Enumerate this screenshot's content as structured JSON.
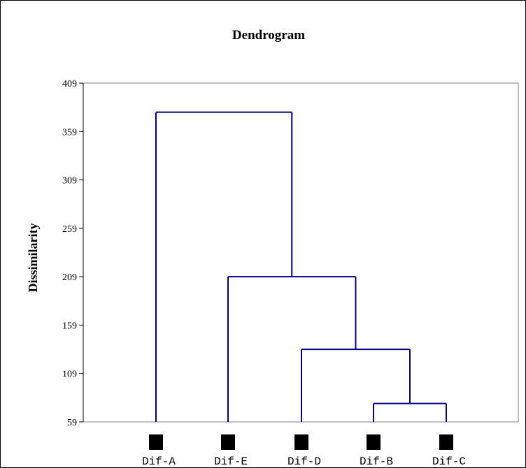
{
  "chart_data": {
    "type": "dendrogram",
    "title": "Dendrogram",
    "ylabel": "Dissimilarity",
    "xlabel": "",
    "ylim": [
      59,
      409
    ],
    "yticks": [
      59,
      109,
      159,
      209,
      259,
      309,
      359,
      409
    ],
    "leaves": [
      "Dif-A",
      "Dif-E",
      "Dif-D",
      "Dif-B",
      "Dif-C"
    ],
    "merges": [
      {
        "left": "Dif-B",
        "right": "Dif-C",
        "height": 78
      },
      {
        "left": "Dif-D",
        "right": "Dif-B+Dif-C",
        "height": 134
      },
      {
        "left": "Dif-E",
        "right": "Dif-D+Dif-B+Dif-C",
        "height": 209
      },
      {
        "left": "Dif-A",
        "right": "Dif-E+Dif-D+Dif-B+Dif-C",
        "height": 379
      }
    ],
    "colors": {
      "link": "#000080",
      "axis": "#808080",
      "marker": "#000000"
    }
  }
}
